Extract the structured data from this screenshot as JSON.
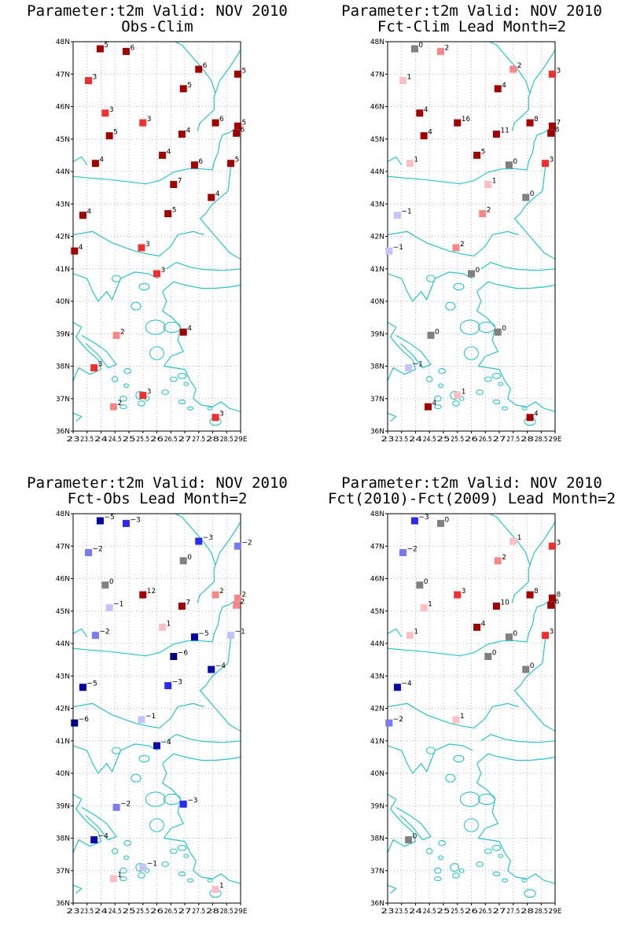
{
  "colors": {
    "coast": "#2bc4c4",
    "grid": "#b4b4b4",
    "frame": "#000000",
    "scale": {
      "-6": "#000080",
      "-5": "#0000a0",
      "-4": "#0a0aa8",
      "-3": "#2a2af0",
      "-2": "#7a7af5",
      "-1": "#c4c4fb",
      "0": "#808080",
      "1": "#fcc0c4",
      "2": "#f88888",
      "3": "#f03030",
      "4": "#a00000",
      "5": "#a00000",
      "6": "#a00000",
      "7": "#a00000",
      "8": "#a00000",
      "10": "#a00000",
      "11": "#a00000",
      "16": "#a00000"
    }
  },
  "chart_data": [
    {
      "type": "map",
      "title_line1": "Parameter:t2m Valid: NOV 2010",
      "title_line2": "Obs-Clim",
      "xlim": [
        23,
        29
      ],
      "ylim": [
        36,
        48
      ],
      "x_ticks": [
        "23",
        "23.5",
        "24",
        "24.5",
        "25",
        "25.5",
        "26",
        "26.5",
        "27",
        "27.5",
        "28",
        "28.5",
        "29E"
      ],
      "y_ticks": [
        "36N",
        "37N",
        "38N",
        "39N",
        "40N",
        "41N",
        "42N",
        "43N",
        "44N",
        "45N",
        "46N",
        "47N",
        "48N"
      ],
      "stations": [
        {
          "lon": 23.97,
          "lat": 47.78,
          "value": 5
        },
        {
          "lon": 24.9,
          "lat": 47.7,
          "value": 6
        },
        {
          "lon": 27.5,
          "lat": 47.15,
          "value": 6
        },
        {
          "lon": 28.9,
          "lat": 47.0,
          "value": 5
        },
        {
          "lon": 23.55,
          "lat": 46.8,
          "value": 3
        },
        {
          "lon": 26.95,
          "lat": 46.55,
          "value": 5
        },
        {
          "lon": 24.15,
          "lat": 45.8,
          "value": 3
        },
        {
          "lon": 25.5,
          "lat": 45.5,
          "value": 3
        },
        {
          "lon": 28.1,
          "lat": 45.5,
          "value": 6
        },
        {
          "lon": 28.9,
          "lat": 45.4,
          "value": 5
        },
        {
          "lon": 28.85,
          "lat": 45.18,
          "value": 6
        },
        {
          "lon": 24.3,
          "lat": 45.1,
          "value": 5
        },
        {
          "lon": 26.9,
          "lat": 45.15,
          "value": 4
        },
        {
          "lon": 26.2,
          "lat": 44.5,
          "value": 4
        },
        {
          "lon": 23.8,
          "lat": 44.25,
          "value": 4
        },
        {
          "lon": 27.35,
          "lat": 44.2,
          "value": 6
        },
        {
          "lon": 28.65,
          "lat": 44.25,
          "value": 5
        },
        {
          "lon": 26.6,
          "lat": 43.6,
          "value": 7
        },
        {
          "lon": 27.95,
          "lat": 43.2,
          "value": 4
        },
        {
          "lon": 23.35,
          "lat": 42.65,
          "value": 4
        },
        {
          "lon": 26.4,
          "lat": 42.7,
          "value": 5
        },
        {
          "lon": 25.45,
          "lat": 41.65,
          "value": 3
        },
        {
          "lon": 23.05,
          "lat": 41.55,
          "value": 4
        },
        {
          "lon": 26.0,
          "lat": 40.85,
          "value": 3
        },
        {
          "lon": 24.55,
          "lat": 38.95,
          "value": 2
        },
        {
          "lon": 26.95,
          "lat": 39.05,
          "value": 4
        },
        {
          "lon": 23.75,
          "lat": 37.95,
          "value": 3
        },
        {
          "lon": 25.5,
          "lat": 37.1,
          "value": 3
        },
        {
          "lon": 24.45,
          "lat": 36.75,
          "value": 2
        },
        {
          "lon": 28.1,
          "lat": 36.42,
          "value": 3
        }
      ]
    },
    {
      "type": "map",
      "title_line1": "Parameter:t2m Valid: NOV 2010",
      "title_line2": "Fct-Clim Lead Month=2",
      "xlim": [
        23,
        29
      ],
      "ylim": [
        36,
        48
      ],
      "x_ticks": [
        "23",
        "23.5",
        "24",
        "24.5",
        "25",
        "25.5",
        "26",
        "26.5",
        "27",
        "27.5",
        "28",
        "28.5",
        "29E"
      ],
      "y_ticks": [
        "36N",
        "37N",
        "38N",
        "39N",
        "40N",
        "41N",
        "42N",
        "43N",
        "44N",
        "45N",
        "46N",
        "47N",
        "48N"
      ],
      "stations": [
        {
          "lon": 23.97,
          "lat": 47.78,
          "value": 0
        },
        {
          "lon": 24.9,
          "lat": 47.7,
          "value": 2
        },
        {
          "lon": 27.5,
          "lat": 47.15,
          "value": 2
        },
        {
          "lon": 28.9,
          "lat": 47.0,
          "value": 3
        },
        {
          "lon": 23.55,
          "lat": 46.8,
          "value": 1
        },
        {
          "lon": 26.95,
          "lat": 46.55,
          "value": 4
        },
        {
          "lon": 24.15,
          "lat": 45.8,
          "value": 4
        },
        {
          "lon": 25.5,
          "lat": 45.5,
          "value": 16
        },
        {
          "lon": 28.1,
          "lat": 45.5,
          "value": 8
        },
        {
          "lon": 28.9,
          "lat": 45.4,
          "value": 7
        },
        {
          "lon": 28.85,
          "lat": 45.18,
          "value": 8
        },
        {
          "lon": 24.3,
          "lat": 45.1,
          "value": 4
        },
        {
          "lon": 26.9,
          "lat": 45.15,
          "value": 11
        },
        {
          "lon": 26.2,
          "lat": 44.5,
          "value": 5
        },
        {
          "lon": 23.8,
          "lat": 44.25,
          "value": 1
        },
        {
          "lon": 27.35,
          "lat": 44.2,
          "value": 0
        },
        {
          "lon": 28.65,
          "lat": 44.25,
          "value": 3
        },
        {
          "lon": 26.6,
          "lat": 43.6,
          "value": 1
        },
        {
          "lon": 27.95,
          "lat": 43.2,
          "value": 0
        },
        {
          "lon": 23.35,
          "lat": 42.65,
          "value": -1
        },
        {
          "lon": 26.4,
          "lat": 42.7,
          "value": 2
        },
        {
          "lon": 25.45,
          "lat": 41.65,
          "value": 2
        },
        {
          "lon": 23.05,
          "lat": 41.55,
          "value": -1
        },
        {
          "lon": 26.0,
          "lat": 40.85,
          "value": 0
        },
        {
          "lon": 24.55,
          "lat": 38.95,
          "value": 0
        },
        {
          "lon": 26.95,
          "lat": 39.05,
          "value": 0
        },
        {
          "lon": 23.75,
          "lat": 37.95,
          "value": -1
        },
        {
          "lon": 25.5,
          "lat": 37.1,
          "value": 1
        },
        {
          "lon": 24.45,
          "lat": 36.75,
          "value": 4
        },
        {
          "lon": 28.1,
          "lat": 36.42,
          "value": 4
        }
      ]
    },
    {
      "type": "map",
      "title_line1": "Parameter:t2m Valid: NOV 2010",
      "title_line2": "Fct-Obs Lead Month=2",
      "xlim": [
        23,
        29
      ],
      "ylim": [
        36,
        48
      ],
      "x_ticks": [
        "23",
        "23.5",
        "24",
        "24.5",
        "25",
        "25.5",
        "26",
        "26.5",
        "27",
        "27.5",
        "28",
        "28.5",
        "29E"
      ],
      "y_ticks": [
        "36N",
        "37N",
        "38N",
        "39N",
        "40N",
        "41N",
        "42N",
        "43N",
        "44N",
        "45N",
        "46N",
        "47N",
        "48N"
      ],
      "stations": [
        {
          "lon": 23.97,
          "lat": 47.78,
          "value": -5
        },
        {
          "lon": 24.9,
          "lat": 47.7,
          "value": -3
        },
        {
          "lon": 27.5,
          "lat": 47.15,
          "value": -3
        },
        {
          "lon": 28.9,
          "lat": 47.0,
          "value": -2
        },
        {
          "lon": 23.55,
          "lat": 46.8,
          "value": -2
        },
        {
          "lon": 26.95,
          "lat": 46.55,
          "value": 0
        },
        {
          "lon": 24.15,
          "lat": 45.8,
          "value": 0
        },
        {
          "lon": 25.5,
          "lat": 45.5,
          "value": 12
        },
        {
          "lon": 28.1,
          "lat": 45.5,
          "value": 2
        },
        {
          "lon": 28.9,
          "lat": 45.4,
          "value": 2
        },
        {
          "lon": 28.85,
          "lat": 45.18,
          "value": 2
        },
        {
          "lon": 24.3,
          "lat": 45.1,
          "value": -1
        },
        {
          "lon": 26.9,
          "lat": 45.15,
          "value": 7
        },
        {
          "lon": 26.2,
          "lat": 44.5,
          "value": 1
        },
        {
          "lon": 23.8,
          "lat": 44.25,
          "value": -2
        },
        {
          "lon": 27.35,
          "lat": 44.2,
          "value": -5
        },
        {
          "lon": 28.65,
          "lat": 44.25,
          "value": -1
        },
        {
          "lon": 26.6,
          "lat": 43.6,
          "value": -6
        },
        {
          "lon": 27.95,
          "lat": 43.2,
          "value": -4
        },
        {
          "lon": 23.35,
          "lat": 42.65,
          "value": -5
        },
        {
          "lon": 26.4,
          "lat": 42.7,
          "value": -3
        },
        {
          "lon": 25.45,
          "lat": 41.65,
          "value": -1
        },
        {
          "lon": 23.05,
          "lat": 41.55,
          "value": -6
        },
        {
          "lon": 26.0,
          "lat": 40.85,
          "value": -4
        },
        {
          "lon": 24.55,
          "lat": 38.95,
          "value": -2
        },
        {
          "lon": 26.95,
          "lat": 39.05,
          "value": -3
        },
        {
          "lon": 23.75,
          "lat": 37.95,
          "value": -4
        },
        {
          "lon": 25.5,
          "lat": 37.1,
          "value": -1
        },
        {
          "lon": 24.45,
          "lat": 36.75,
          "value": 1
        },
        {
          "lon": 28.1,
          "lat": 36.42,
          "value": 1
        }
      ]
    },
    {
      "type": "map",
      "title_line1": "Parameter:t2m Valid: NOV 2010",
      "title_line2": "Fct(2010)-Fct(2009) Lead Month=2",
      "xlim": [
        23,
        29
      ],
      "ylim": [
        36,
        48
      ],
      "x_ticks": [
        "23",
        "23.5",
        "24",
        "24.5",
        "25",
        "25.5",
        "26",
        "26.5",
        "27",
        "27.5",
        "28",
        "28.5",
        "29E"
      ],
      "y_ticks": [
        "36N",
        "37N",
        "38N",
        "39N",
        "40N",
        "41N",
        "42N",
        "43N",
        "44N",
        "45N",
        "46N",
        "47N",
        "48N"
      ],
      "stations": [
        {
          "lon": 23.97,
          "lat": 47.78,
          "value": -3
        },
        {
          "lon": 24.9,
          "lat": 47.7,
          "value": 0
        },
        {
          "lon": 27.5,
          "lat": 47.15,
          "value": 1
        },
        {
          "lon": 28.9,
          "lat": 47.0,
          "value": 3
        },
        {
          "lon": 23.55,
          "lat": 46.8,
          "value": -2
        },
        {
          "lon": 26.95,
          "lat": 46.55,
          "value": 2
        },
        {
          "lon": 24.15,
          "lat": 45.8,
          "value": 0
        },
        {
          "lon": 25.5,
          "lat": 45.5,
          "value": 3
        },
        {
          "lon": 28.1,
          "lat": 45.5,
          "value": 8
        },
        {
          "lon": 28.9,
          "lat": 45.4,
          "value": 8
        },
        {
          "lon": 28.85,
          "lat": 45.18,
          "value": 6
        },
        {
          "lon": 24.3,
          "lat": 45.1,
          "value": 1
        },
        {
          "lon": 26.9,
          "lat": 45.15,
          "value": 10
        },
        {
          "lon": 26.2,
          "lat": 44.5,
          "value": 4
        },
        {
          "lon": 23.8,
          "lat": 44.25,
          "value": 1
        },
        {
          "lon": 27.35,
          "lat": 44.2,
          "value": 0
        },
        {
          "lon": 28.65,
          "lat": 44.25,
          "value": 3
        },
        {
          "lon": 26.6,
          "lat": 43.6,
          "value": 0
        },
        {
          "lon": 27.95,
          "lat": 43.2,
          "value": 0
        },
        {
          "lon": 23.35,
          "lat": 42.65,
          "value": -4
        },
        {
          "lon": 25.45,
          "lat": 41.65,
          "value": 1
        },
        {
          "lon": 23.05,
          "lat": 41.55,
          "value": -2
        },
        {
          "lon": 23.75,
          "lat": 37.95,
          "value": 0
        }
      ]
    }
  ]
}
